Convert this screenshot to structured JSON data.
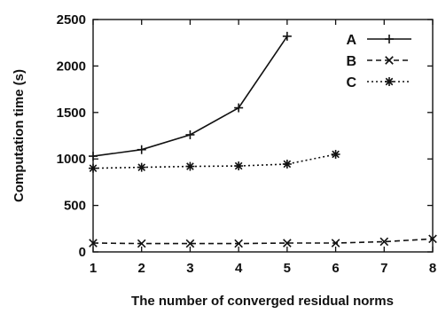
{
  "chart_data": {
    "type": "line",
    "xlabel": "The number of converged residual norms",
    "ylabel": "Computation time (s)",
    "xlim": [
      1,
      8
    ],
    "ylim": [
      0,
      2500
    ],
    "xticks": [
      "1",
      "2",
      "3",
      "4",
      "5",
      "6",
      "7",
      "8"
    ],
    "yticks": [
      "0",
      "500",
      "1000",
      "1500",
      "2000",
      "2500"
    ],
    "grid": false,
    "legend_position": "top-right",
    "series": [
      {
        "name": "A",
        "marker": "plus",
        "line": "solid",
        "x": [
          1,
          2,
          3,
          4,
          5
        ],
        "y": [
          1030,
          1100,
          1260,
          1550,
          2320
        ]
      },
      {
        "name": "B",
        "marker": "x",
        "line": "dashed",
        "x": [
          1,
          2,
          3,
          4,
          5,
          6,
          7,
          8
        ],
        "y": [
          95,
          90,
          90,
          90,
          95,
          95,
          110,
          140
        ]
      },
      {
        "name": "C",
        "marker": "star",
        "line": "dotted",
        "x": [
          1,
          2,
          3,
          4,
          5,
          6
        ],
        "y": [
          900,
          910,
          920,
          925,
          945,
          1050
        ]
      }
    ]
  }
}
